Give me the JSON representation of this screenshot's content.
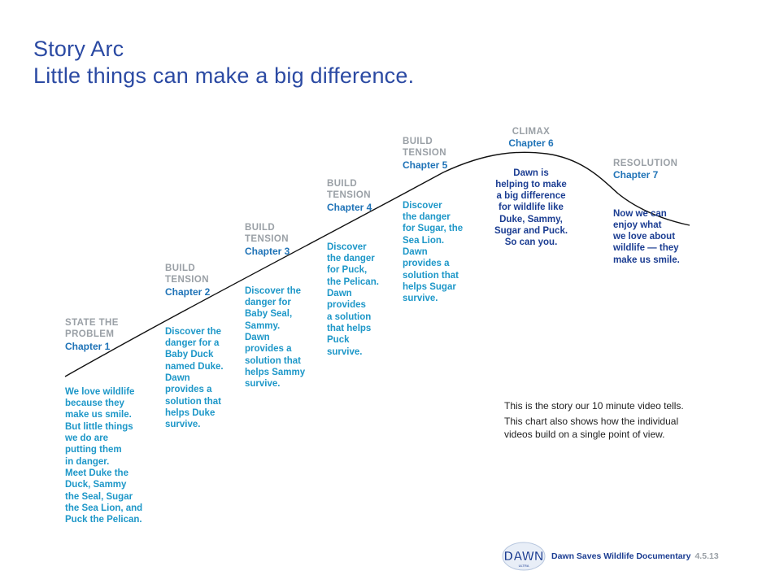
{
  "title": {
    "line1": "Story Arc",
    "line2": "Little things can make a big difference."
  },
  "stages": [
    {
      "kicker": "STATE THE\nPROBLEM",
      "chapter": "Chapter 1",
      "desc": "We love wildlife\nbecause they\nmake us smile.\nBut little things\nwe do are\nputting them\nin danger.\nMeet Duke the\nDuck, Sammy\nthe Seal, Sugar\nthe Sea Lion, and\nPuck the Pelican."
    },
    {
      "kicker": "BUILD\nTENSION",
      "chapter": "Chapter 2",
      "desc": "Discover the\ndanger for a\nBaby Duck\nnamed Duke.\nDawn\nprovides a\nsolution that\nhelps Duke\nsurvive."
    },
    {
      "kicker": "BUILD\nTENSION",
      "chapter": "Chapter 3",
      "desc": "Discover the\ndanger for\nBaby Seal,\nSammy.\nDawn\nprovides a\nsolution that\nhelps Sammy\nsurvive."
    },
    {
      "kicker": "BUILD\nTENSION",
      "chapter": "Chapter 4",
      "desc": "Discover\nthe danger\nfor Puck,\nthe Pelican.\nDawn\nprovides\na solution\nthat helps\nPuck\nsurvive."
    },
    {
      "kicker": "BUILD\nTENSION",
      "chapter": "Chapter 5",
      "desc": "Discover\nthe danger\nfor Sugar, the\nSea Lion.\nDawn\nprovides a\nsolution that\nhelps Sugar\nsurvive."
    },
    {
      "kicker": "CLIMAX",
      "chapter": "Chapter 6",
      "desc": "Dawn is\nhelping to make\na big difference\nfor wildlife like\nDuke, Sammy,\nSugar and Puck.\nSo can you."
    },
    {
      "kicker": "RESOLUTION",
      "chapter": "Chapter 7",
      "desc": "Now we can\nenjoy what\nwe love about\nwildlife — they\nmake us smile."
    }
  ],
  "note": {
    "line1": "This is the story our 10 minute video tells.",
    "line2": "This chart also shows how the individual\nvideos build on a single point of view."
  },
  "footer": {
    "logo_text": "DAWN",
    "logo_sub": "ULTRA",
    "label": "Dawn Saves Wildlife Documentary",
    "date": "4.5.13"
  },
  "colors": {
    "title": "#2b4aa3",
    "kicker": "#9aa0a6",
    "chapter": "#1f73b7",
    "desc": "#1d97c8",
    "desc_dark": "#1b3d92",
    "line": "#111111"
  }
}
